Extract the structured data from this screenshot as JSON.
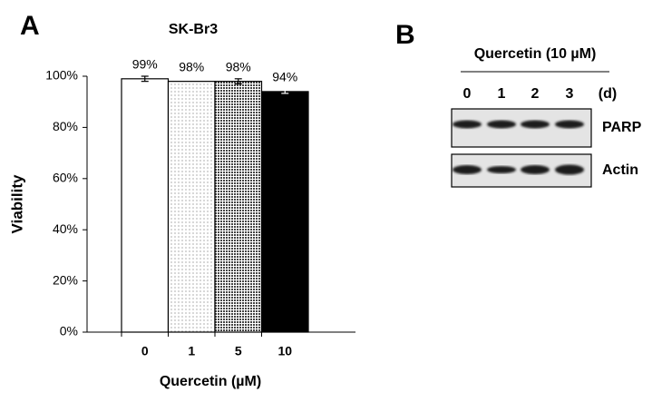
{
  "panel_labels": [
    "A",
    "B"
  ],
  "chart_data": {
    "type": "bar",
    "title": "SK-Br3",
    "categories": [
      "0",
      "1",
      "5",
      "10"
    ],
    "values": [
      99,
      98,
      98,
      94
    ],
    "value_labels": [
      "99%",
      "98%",
      "98%",
      "94%"
    ],
    "errors": [
      1,
      0,
      1,
      0.7
    ],
    "colors": [
      "#ffffff",
      "#e6e6e6",
      "#9a9a9a",
      "#000000"
    ],
    "x_label": "Quercetin (µM)",
    "y_label": "Viability",
    "ylim": [
      0,
      100
    ],
    "yticks": [
      {
        "value": 0,
        "label": "0%"
      },
      {
        "value": 20,
        "label": "20%"
      },
      {
        "value": 40,
        "label": "40%"
      },
      {
        "value": 60,
        "label": "60%"
      },
      {
        "value": 80,
        "label": "80%"
      },
      {
        "value": 100,
        "label": "100%"
      }
    ]
  },
  "blot": {
    "title": "Quercetin (10 µM)",
    "lanes": [
      "0",
      "1",
      "2",
      "3"
    ],
    "unit": "(d)",
    "rows": [
      "PARP",
      "Actin"
    ]
  }
}
